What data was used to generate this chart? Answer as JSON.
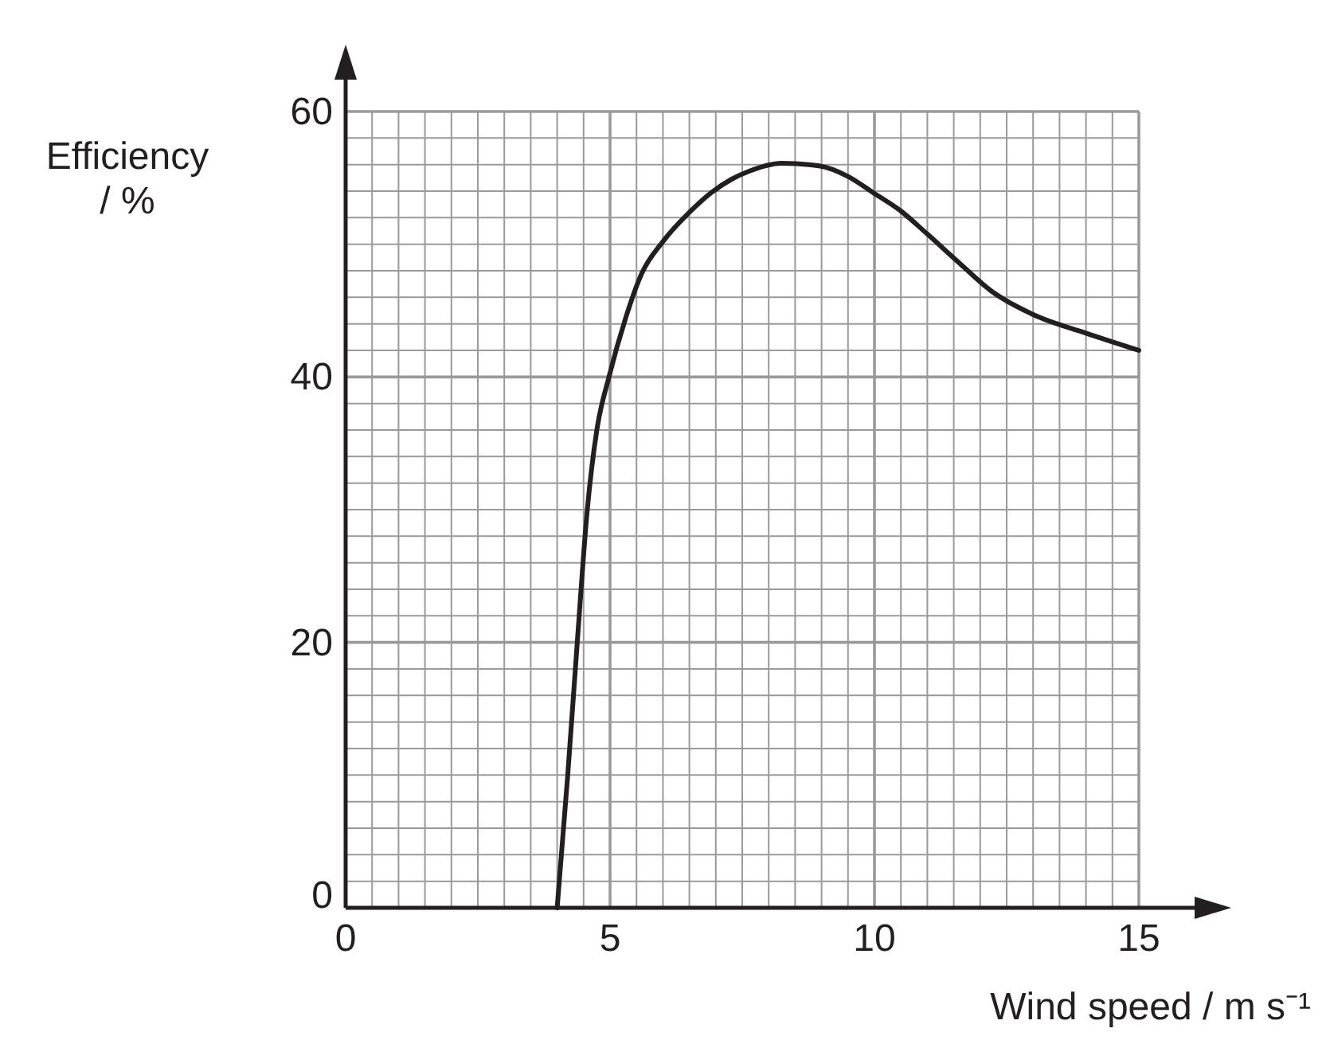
{
  "chart_data": {
    "type": "line",
    "xlabel": "Wind speed / m s⁻¹",
    "ylabel": "Efficiency / %",
    "xlim": [
      0,
      15
    ],
    "ylim": [
      0,
      60
    ],
    "xticks": [
      0,
      {
        "value": 0.5,
        "label": null
      },
      {
        "value": 1,
        "label": null
      },
      {
        "value": 1.5,
        "label": null
      },
      {
        "value": 2,
        "label": null
      },
      {
        "value": 2.5,
        "label": null
      },
      {
        "value": 3,
        "label": null
      },
      {
        "value": 3.5,
        "label": null
      },
      {
        "value": 4,
        "label": null
      },
      {
        "value": 4.5,
        "label": null
      },
      5,
      {
        "value": 5.5,
        "label": null
      },
      {
        "value": 6,
        "label": null
      },
      {
        "value": 6.5,
        "label": null
      },
      {
        "value": 7,
        "label": null
      },
      {
        "value": 7.5,
        "label": null
      },
      {
        "value": 8,
        "label": null
      },
      {
        "value": 8.5,
        "label": null
      },
      {
        "value": 9,
        "label": null
      },
      {
        "value": 9.5,
        "label": null
      },
      10,
      {
        "value": 10.5,
        "label": null
      },
      {
        "value": 11,
        "label": null
      },
      {
        "value": 11.5,
        "label": null
      },
      {
        "value": 12,
        "label": null
      },
      {
        "value": 12.5,
        "label": null
      },
      {
        "value": 13,
        "label": null
      },
      {
        "value": 13.5,
        "label": null
      },
      {
        "value": 14,
        "label": null
      },
      {
        "value": 14.5,
        "label": null
      },
      15
    ],
    "yticks": [
      0,
      {
        "value": 2,
        "label": null
      },
      {
        "value": 4,
        "label": null
      },
      {
        "value": 6,
        "label": null
      },
      {
        "value": 8,
        "label": null
      },
      {
        "value": 10,
        "label": null
      },
      {
        "value": 12,
        "label": null
      },
      {
        "value": 14,
        "label": null
      },
      {
        "value": 16,
        "label": null
      },
      {
        "value": 18,
        "label": null
      },
      20,
      {
        "value": 22,
        "label": null
      },
      {
        "value": 24,
        "label": null
      },
      {
        "value": 26,
        "label": null
      },
      {
        "value": 28,
        "label": null
      },
      {
        "value": 30,
        "label": null
      },
      {
        "value": 32,
        "label": null
      },
      {
        "value": 34,
        "label": null
      },
      {
        "value": 36,
        "label": null
      },
      {
        "value": 38,
        "label": null
      },
      40,
      {
        "value": 42,
        "label": null
      },
      {
        "value": 44,
        "label": null
      },
      {
        "value": 46,
        "label": null
      },
      {
        "value": 48,
        "label": null
      },
      {
        "value": 50,
        "label": null
      },
      {
        "value": 52,
        "label": null
      },
      {
        "value": 54,
        "label": null
      },
      {
        "value": 56,
        "label": null
      },
      {
        "value": 58,
        "label": null
      },
      60
    ],
    "grid": true,
    "marker": "none",
    "line_style": "solid",
    "series": [
      {
        "color": "#231f20",
        "x": [
          4.0,
          4.2,
          4.38,
          4.57,
          4.75,
          4.98,
          5.3,
          5.6,
          6.0,
          6.5,
          6.92,
          7.3,
          7.63,
          8.24,
          8.95,
          9.5,
          9.97,
          10.5,
          10.99,
          11.6,
          12.2,
          13.0,
          14.0,
          15.0
        ],
        "values": [
          0,
          10,
          20,
          30,
          36,
          40,
          44.5,
          47.8,
          50.2,
          52.4,
          53.9,
          54.9,
          55.5,
          56.1,
          55.9,
          55.1,
          53.9,
          52.5,
          50.8,
          48.6,
          46.5,
          44.7,
          43.3,
          42.0
        ]
      }
    ]
  }
}
